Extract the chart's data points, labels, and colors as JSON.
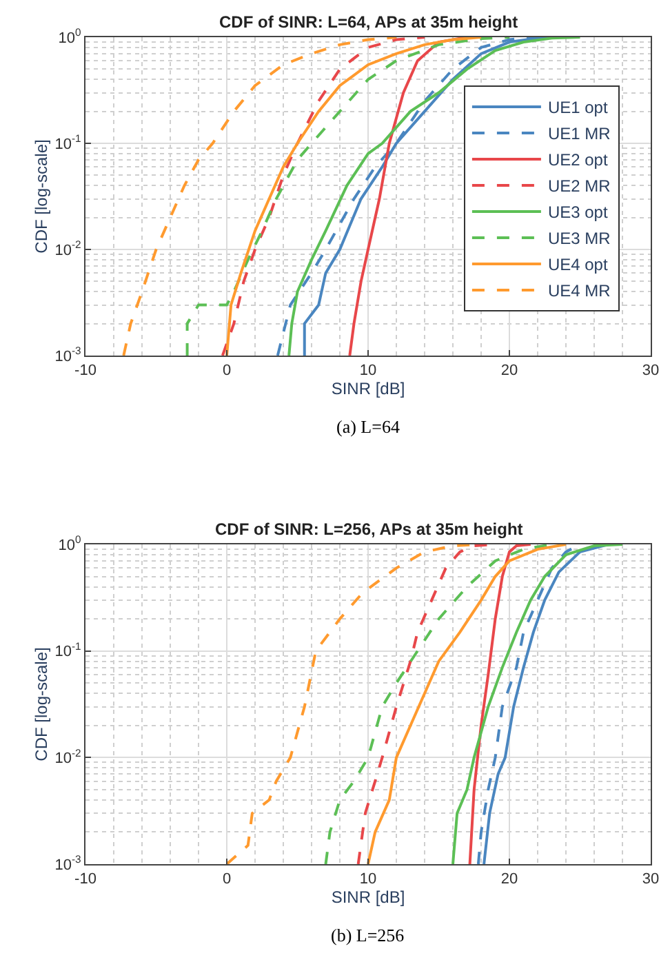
{
  "chart_data": [
    {
      "type": "line",
      "title": "CDF of SINR: L=64, APs at 35m height",
      "xlabel": "SINR [dB]",
      "ylabel": "CDF [log-scale]",
      "xlim": [
        -10,
        30
      ],
      "xticks": [
        -10,
        0,
        10,
        20,
        30
      ],
      "ylim": [
        0.001,
        1
      ],
      "yticks": [
        {
          "value": 0.001,
          "label": "10$^{-3}$"
        },
        {
          "value": 0.01,
          "label": "10$^{-2}$"
        },
        {
          "value": 0.1,
          "label": "10$^{-1}$"
        },
        {
          "value": 1,
          "label": "10$^{0}$"
        }
      ],
      "log": "y",
      "grid": true,
      "legend": "right",
      "annotations": [
        "(a) L=64"
      ],
      "series": [
        {
          "name": "UE1 opt",
          "color": "#4a86c0",
          "line_style": "solid",
          "x": [
            5.5,
            5.5,
            6.5,
            7,
            8,
            9.5,
            11,
            12,
            14,
            16,
            18,
            20,
            22,
            23
          ],
          "values": [
            0.001,
            0.002,
            0.003,
            0.006,
            0.01,
            0.03,
            0.06,
            0.1,
            0.2,
            0.4,
            0.7,
            0.9,
            0.98,
            1
          ]
        },
        {
          "name": "UE1 MR",
          "color": "#4a86c0",
          "line_style": "dashed",
          "x": [
            3.6,
            4.5,
            6,
            7,
            9,
            10.5,
            12,
            14,
            16,
            18,
            20,
            22
          ],
          "values": [
            0.001,
            0.003,
            0.006,
            0.01,
            0.03,
            0.06,
            0.1,
            0.25,
            0.5,
            0.8,
            0.95,
            1
          ]
        },
        {
          "name": "UE2 opt",
          "color": "#e8474a",
          "line_style": "solid",
          "x": [
            8.7,
            9,
            9.5,
            10,
            10.8,
            11.5,
            12.5,
            13.5,
            15,
            17
          ],
          "values": [
            0.001,
            0.002,
            0.005,
            0.01,
            0.03,
            0.1,
            0.3,
            0.6,
            0.9,
            1
          ]
        },
        {
          "name": "UE2 MR",
          "color": "#e8474a",
          "line_style": "dashed",
          "x": [
            -0.3,
            0.5,
            1.2,
            2,
            3,
            4,
            5,
            6.5,
            8,
            10,
            12,
            14
          ],
          "values": [
            0.001,
            0.002,
            0.005,
            0.01,
            0.02,
            0.05,
            0.1,
            0.25,
            0.5,
            0.8,
            0.95,
            1
          ]
        },
        {
          "name": "UE3 opt",
          "color": "#5cbf55",
          "line_style": "solid",
          "x": [
            4.4,
            4.6,
            5,
            6,
            7,
            8.5,
            10,
            11,
            13,
            15,
            17,
            19,
            21,
            23,
            25
          ],
          "values": [
            0.001,
            0.002,
            0.004,
            0.008,
            0.015,
            0.04,
            0.08,
            0.1,
            0.2,
            0.3,
            0.5,
            0.75,
            0.9,
            0.98,
            1
          ]
        },
        {
          "name": "UE3 MR",
          "color": "#5cbf55",
          "line_style": "dashed",
          "x": [
            -2.8,
            -2.8,
            -2,
            0,
            0.5,
            1.5,
            2.5,
            3.5,
            5,
            6,
            8,
            10,
            12,
            15,
            18,
            20
          ],
          "values": [
            0.001,
            0.002,
            0.003,
            0.003,
            0.004,
            0.008,
            0.015,
            0.03,
            0.07,
            0.1,
            0.2,
            0.4,
            0.6,
            0.85,
            0.97,
            1
          ]
        },
        {
          "name": "UE4 opt",
          "color": "#ff9a2e",
          "line_style": "solid",
          "x": [
            0,
            0.3,
            1,
            2,
            3,
            4,
            5,
            6.5,
            8,
            10,
            12,
            14,
            16,
            18
          ],
          "values": [
            0.001,
            0.003,
            0.006,
            0.015,
            0.03,
            0.06,
            0.1,
            0.2,
            0.35,
            0.55,
            0.7,
            0.85,
            0.95,
            1
          ]
        },
        {
          "name": "UE4 MR",
          "color": "#ff9a2e",
          "line_style": "dashed",
          "x": [
            -7.3,
            -6.8,
            -6,
            -5,
            -4,
            -3,
            -2,
            -1,
            0.5,
            2,
            4,
            6,
            8,
            10,
            12
          ],
          "values": [
            0.001,
            0.002,
            0.004,
            0.01,
            0.02,
            0.04,
            0.07,
            0.1,
            0.2,
            0.35,
            0.55,
            0.7,
            0.85,
            0.95,
            1
          ]
        }
      ]
    },
    {
      "type": "line",
      "title": "CDF of SINR: L=256, APs at 35m height",
      "xlabel": "SINR [dB]",
      "ylabel": "CDF [log-scale]",
      "xlim": [
        -10,
        30
      ],
      "xticks": [
        -10,
        0,
        10,
        20,
        30
      ],
      "ylim": [
        0.001,
        1
      ],
      "yticks": [
        {
          "value": 0.001,
          "label": "10$^{-3}$"
        },
        {
          "value": 0.01,
          "label": "10$^{-2}$"
        },
        {
          "value": 0.1,
          "label": "10$^{-1}$"
        },
        {
          "value": 1,
          "label": "10$^{0}$"
        }
      ],
      "log": "y",
      "grid": true,
      "annotations": [
        "(b) L=256"
      ],
      "series": [
        {
          "color": "#4a86c0",
          "line_style": "solid",
          "x": [
            18.2,
            18.6,
            19.2,
            19.7,
            20.3,
            21,
            21.7,
            22.5,
            23.5,
            25,
            27
          ],
          "values": [
            0.001,
            0.003,
            0.007,
            0.01,
            0.03,
            0.07,
            0.15,
            0.3,
            0.55,
            0.85,
            1
          ]
        },
        {
          "color": "#4a86c0",
          "line_style": "dashed",
          "x": [
            17.8,
            18,
            18.5,
            19,
            19.5,
            20.5,
            21,
            22,
            23,
            24,
            25
          ],
          "values": [
            0.001,
            0.002,
            0.005,
            0.01,
            0.03,
            0.07,
            0.15,
            0.3,
            0.6,
            0.85,
            1
          ]
        },
        {
          "color": "#e8474a",
          "line_style": "solid",
          "x": [
            17.2,
            17.5,
            18,
            18.5,
            19,
            19.5,
            20,
            20.5,
            21.5
          ],
          "values": [
            0.001,
            0.005,
            0.02,
            0.06,
            0.2,
            0.5,
            0.85,
            0.97,
            1
          ]
        },
        {
          "color": "#e8474a",
          "line_style": "dashed",
          "x": [
            9.3,
            9.8,
            10.5,
            11,
            12,
            13,
            13.5,
            14.5,
            15.5,
            16.5,
            17.5,
            19
          ],
          "values": [
            0.001,
            0.003,
            0.006,
            0.01,
            0.03,
            0.08,
            0.15,
            0.3,
            0.6,
            0.85,
            0.97,
            1
          ]
        },
        {
          "color": "#5cbf55",
          "line_style": "solid",
          "x": [
            16,
            16.3,
            17,
            17.5,
            18.5,
            19.5,
            20.5,
            21.5,
            22.5,
            24,
            26,
            28
          ],
          "values": [
            0.001,
            0.003,
            0.005,
            0.01,
            0.03,
            0.07,
            0.15,
            0.3,
            0.5,
            0.8,
            0.97,
            1
          ]
        },
        {
          "color": "#5cbf55",
          "line_style": "dashed",
          "x": [
            7,
            7.3,
            8,
            9,
            10,
            11,
            12,
            13.5,
            15,
            17,
            19,
            21,
            23
          ],
          "values": [
            0.001,
            0.002,
            0.004,
            0.006,
            0.01,
            0.03,
            0.05,
            0.1,
            0.2,
            0.4,
            0.7,
            0.9,
            1
          ]
        },
        {
          "color": "#ff9a2e",
          "line_style": "solid",
          "x": [
            10,
            10.5,
            11.5,
            12,
            13,
            14,
            15,
            16.5,
            18,
            19,
            20,
            22,
            24
          ],
          "values": [
            0.001,
            0.002,
            0.004,
            0.01,
            0.02,
            0.04,
            0.08,
            0.15,
            0.3,
            0.5,
            0.7,
            0.9,
            1
          ]
        },
        {
          "color": "#ff9a2e",
          "line_style": "dashed",
          "x": [
            0,
            1.5,
            1.8,
            3,
            3.5,
            4.5,
            5.5,
            6.3,
            8,
            9.6,
            12,
            14,
            16,
            18
          ],
          "values": [
            0.001,
            0.0015,
            0.003,
            0.004,
            0.006,
            0.01,
            0.03,
            0.1,
            0.2,
            0.35,
            0.6,
            0.85,
            0.97,
            1
          ]
        }
      ]
    }
  ]
}
